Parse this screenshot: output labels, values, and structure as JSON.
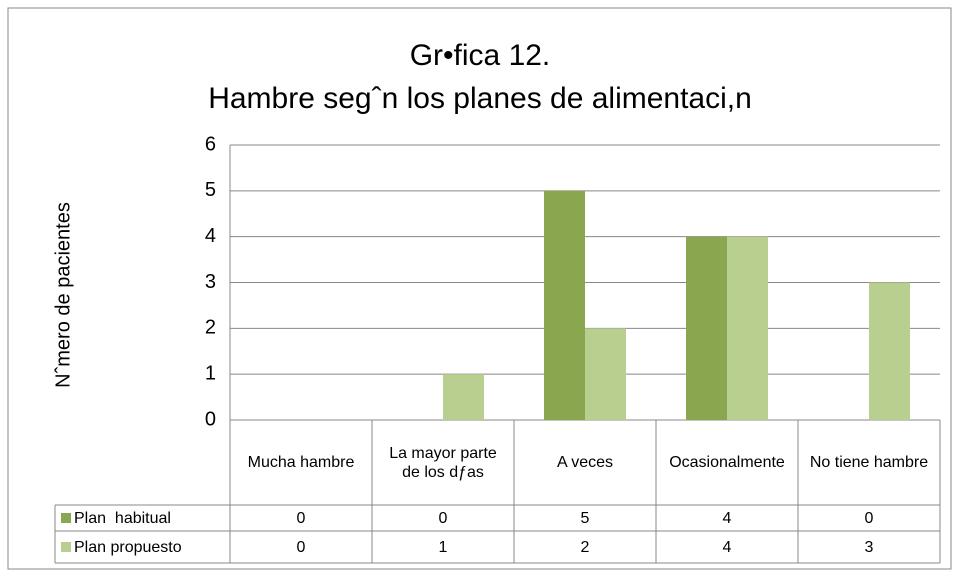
{
  "chart_data": {
    "type": "bar",
    "title": "Gr•fica 12.",
    "subtitle": "Hambre segˆn los planes de alimentaci,n",
    "y_label": "Nˆmero de pacientes",
    "categories": [
      "Mucha hambre",
      "La mayor parte de los dƒas",
      "A veces",
      "Ocasionalmente",
      "No tiene hambre"
    ],
    "series": [
      {
        "name": "Plan  habitual",
        "color": "#8aa64e",
        "values": [
          0,
          0,
          5,
          4,
          0
        ]
      },
      {
        "name": "Plan propuesto",
        "color": "#b9cf90",
        "values": [
          0,
          1,
          2,
          4,
          3
        ]
      }
    ],
    "ylim": [
      0,
      6
    ],
    "yticks": [
      0,
      1,
      2,
      3,
      4,
      5,
      6
    ],
    "grid": true
  }
}
